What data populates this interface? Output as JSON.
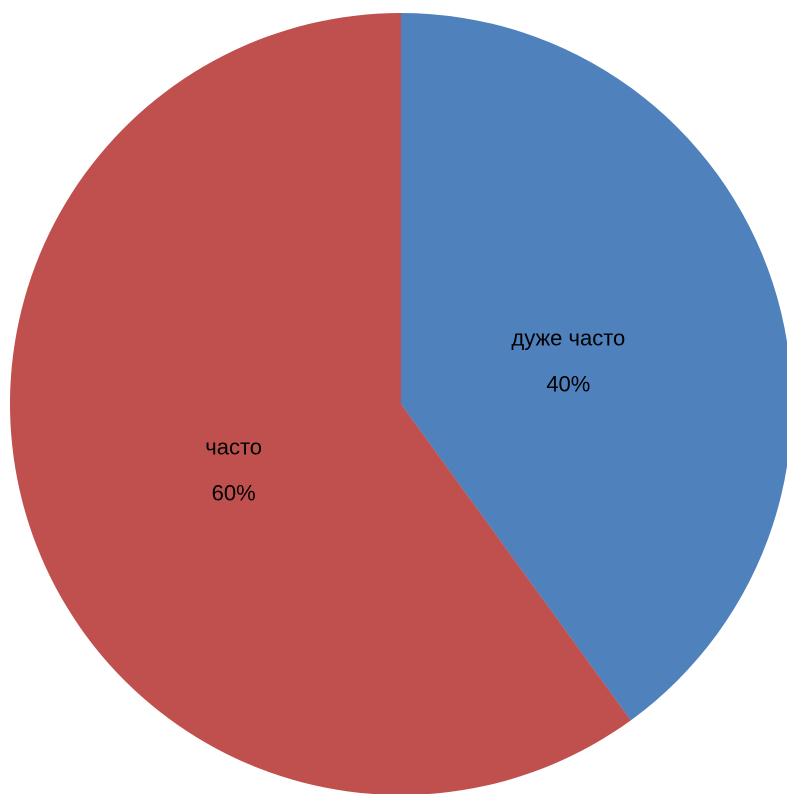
{
  "chart_data": {
    "type": "pie",
    "categories": [
      "дуже часто",
      "часто"
    ],
    "values": [
      40,
      60
    ],
    "value_labels": [
      "40%",
      "60%"
    ],
    "colors": [
      "#4F81BD",
      "#C0504D"
    ],
    "start": "12 o'clock",
    "direction": "clockwise",
    "legend": "none",
    "title": ""
  }
}
